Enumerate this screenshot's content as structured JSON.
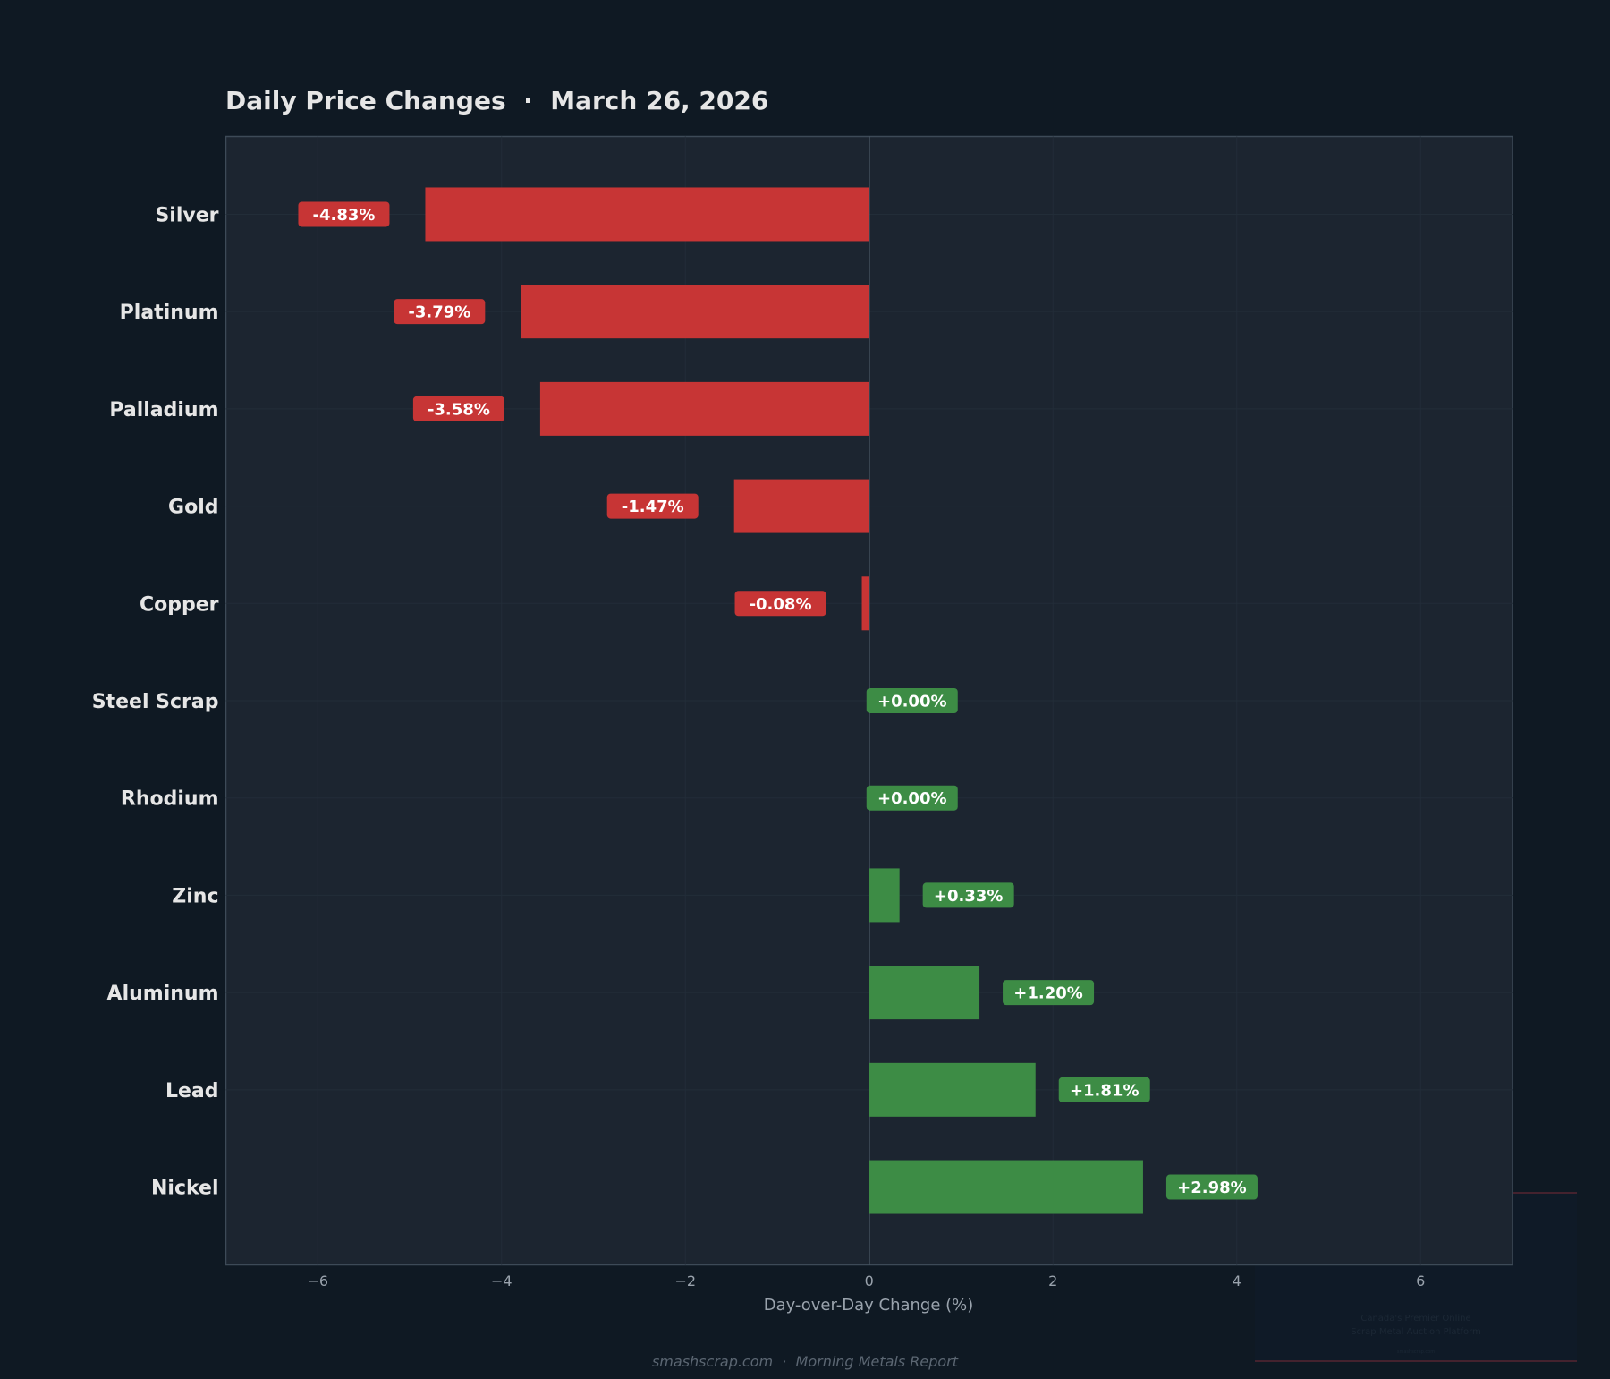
{
  "chart_data": {
    "type": "bar",
    "orientation": "horizontal",
    "title": "Daily Price Changes  ·  March 26, 2026",
    "xlabel": "Day-over-Day Change (%)",
    "ylabel": "",
    "xlim": [
      -7,
      7
    ],
    "xticks": [
      -6,
      -4,
      -2,
      0,
      2,
      4,
      6
    ],
    "xtick_labels": [
      "−6",
      "−4",
      "−2",
      "0",
      "2",
      "4",
      "6"
    ],
    "grid": true,
    "categories": [
      "Silver",
      "Platinum",
      "Palladium",
      "Gold",
      "Copper",
      "Steel Scrap",
      "Rhodium",
      "Zinc",
      "Aluminum",
      "Lead",
      "Nickel"
    ],
    "values": [
      -4.83,
      -3.79,
      -3.58,
      -1.47,
      -0.08,
      0.0,
      0.0,
      0.33,
      1.2,
      1.81,
      2.98
    ],
    "data_labels": [
      "-4.83%",
      "-3.79%",
      "-3.58%",
      "-1.47%",
      "-0.08%",
      "+0.00%",
      "+0.00%",
      "+0.33%",
      "+1.20%",
      "+1.81%",
      "+2.98%"
    ],
    "colors": {
      "negative": "#c73535",
      "positive": "#3d8c45",
      "background": "#0f1923",
      "plot_background": "#1c2530"
    }
  },
  "footer": "smashscrap.com  ·  Morning Metals Report",
  "watermark": {
    "tagline_line1": "Canada's Premier Online",
    "tagline_line2": "Scrap Metal Auction Platform",
    "site": "smashscrap.com"
  }
}
